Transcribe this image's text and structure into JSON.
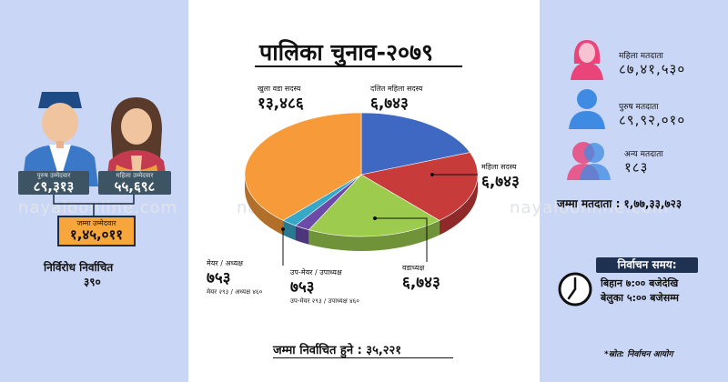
{
  "title": "पालिका चुनाव-२०७९",
  "watermark": "nayaloonline.com",
  "candidates": {
    "male_label": "पुरुष उम्मेदवार",
    "male_value": "८९,३१३",
    "female_label": "महिला उम्मेदवार",
    "female_value": "५५,६९८",
    "total_label": "जम्मा उम्मेदवार",
    "total_value": "१,४५,०११",
    "unopposed_label": "निर्विरोध निर्वाचित",
    "unopposed_value": "३९०"
  },
  "voters": {
    "female_label": "महिला मतदाता",
    "female_value": "८७,४१,५३०",
    "male_label": "पुरुष मतदाता",
    "male_value": "८९,९२,०१०",
    "other_label": "अन्य मतदाता",
    "other_value": "१८३",
    "total_label": "जम्मा मतदाता : १,७७,३३,७२३"
  },
  "election_time": {
    "caption": "निर्वाचन समय:",
    "from": "बिहान ७:०० बजेदेखि",
    "to": "बेलुका ५:०० बजेसम्म"
  },
  "source": "*स्रोत: निर्वाचन आयोग",
  "chart_data": {
    "type": "pie",
    "title": "पालिका चुनाव-२०७९",
    "total_label": "जम्मा निर्वाचित हुने : ३५,२२१",
    "slices": [
      {
        "label": "दलित महिला सदस्य",
        "value_text": "६,७४३",
        "value": 6743,
        "color": "#3f68c2"
      },
      {
        "label": "महिला सदस्य",
        "value_text": "६,७४३",
        "value": 6743,
        "color": "#c83b3b"
      },
      {
        "label": "वडाध्यक्ष",
        "value_text": "६,७४३",
        "value": 6743,
        "color": "#9ccb4e"
      },
      {
        "label": "उप-मेयर / उपाध्यक्ष",
        "value_text": "७५३",
        "value": 753,
        "color": "#6b4aa8",
        "note": "उप-मेयर २९३ / उपाध्यक्ष ४६०"
      },
      {
        "label": "मेयर / अध्यक्ष",
        "value_text": "७५३",
        "value": 753,
        "color": "#38a8c9",
        "note": "मेयर २९३ / अध्यक्ष ४६०"
      },
      {
        "label": "खुला वडा सदस्य",
        "value_text": "१३,४८६",
        "value": 13486,
        "color": "#f69a3a"
      }
    ]
  }
}
